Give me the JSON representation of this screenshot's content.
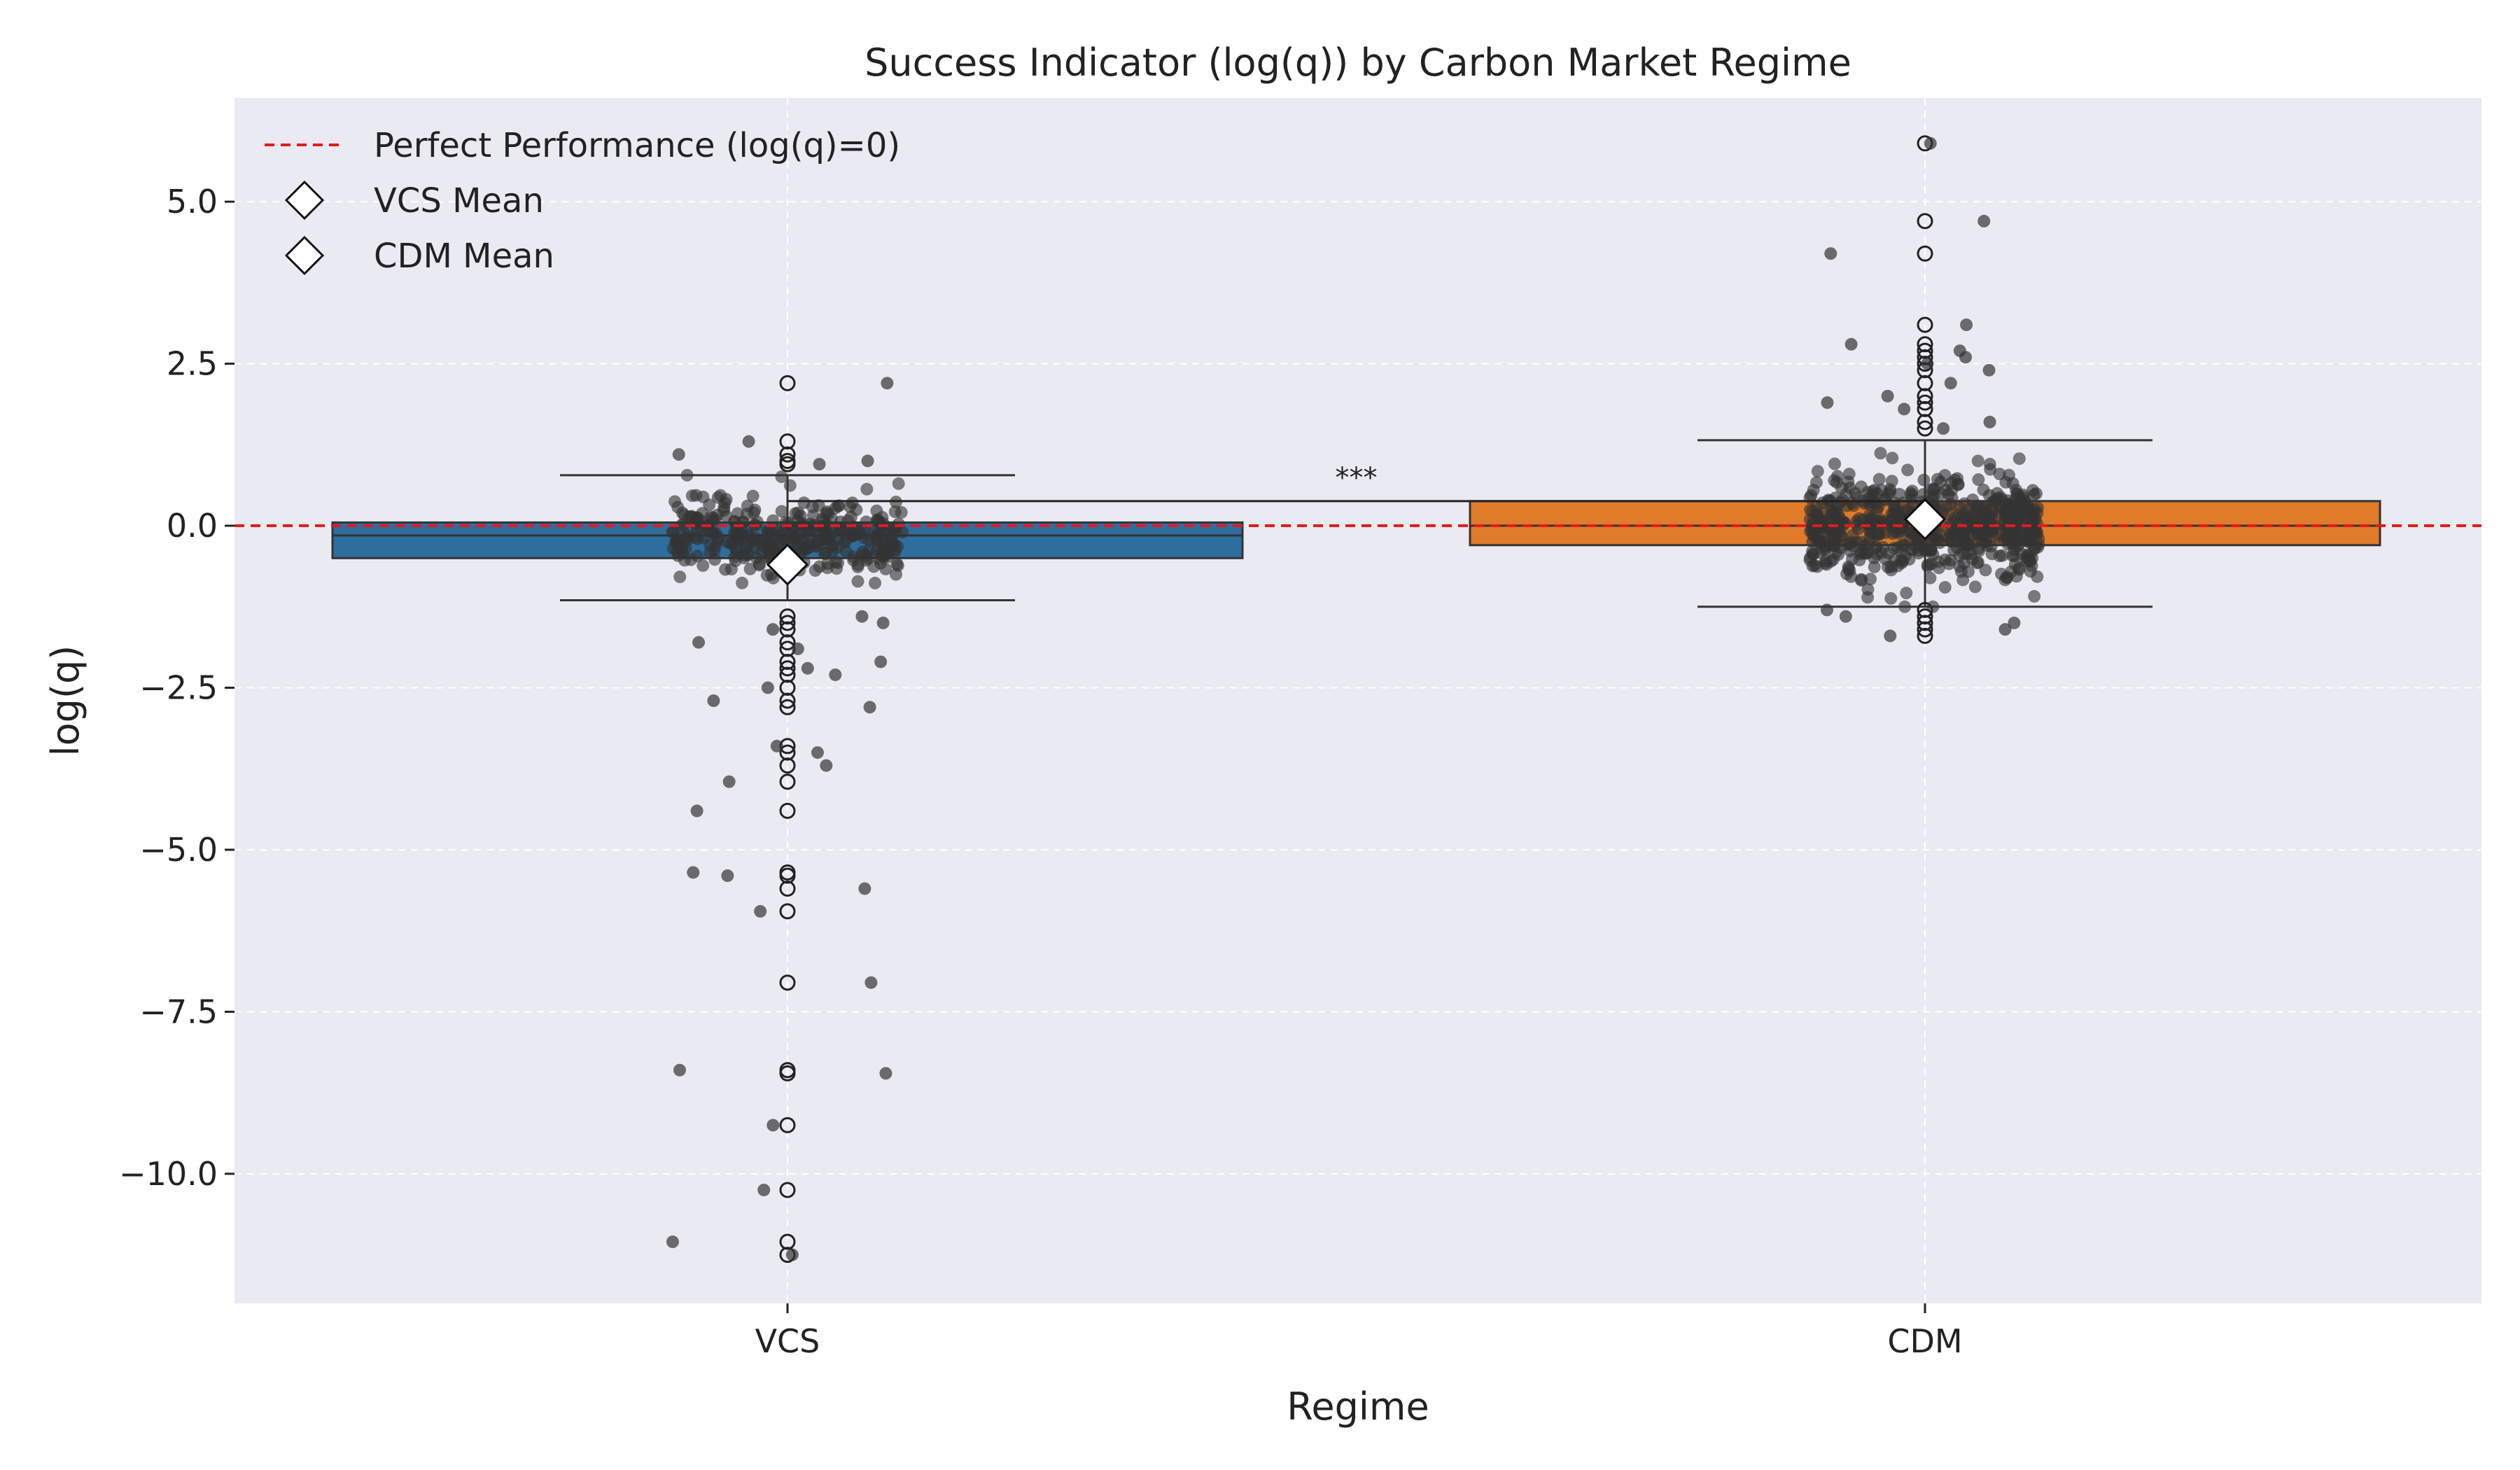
{
  "chart_data": {
    "type": "box",
    "title": "Success Indicator (log(q)) by Carbon Market Regime",
    "xlabel": "Regime",
    "ylabel": "log(q)",
    "ylim": [
      -12.0,
      6.6
    ],
    "yticks": [
      5.0,
      2.5,
      0.0,
      -2.5,
      -5.0,
      -7.5,
      -10.0
    ],
    "ytick_labels": [
      "5.0",
      "2.5",
      "0.0",
      "−2.5",
      "−5.0",
      "−7.5",
      "−10.0"
    ],
    "grid": true,
    "legend_position": "top-left",
    "legend": {
      "reference_line": "Perfect Performance (log(q)=0)",
      "vcs_mean": "VCS Mean",
      "cdm_mean": "CDM Mean"
    },
    "reference_line_value": 0.0,
    "significance_label": "***",
    "significance_bar_y": 0.38,
    "colors": {
      "background": "#eaeaf2",
      "grid": "#ffffff",
      "reference_line": "#e41a1c",
      "point": "#333333"
    },
    "categories": [
      {
        "name": "VCS",
        "color": "#2e6e9e",
        "q1": -0.5,
        "median": -0.15,
        "q3": 0.05,
        "whisker_low": -1.15,
        "whisker_high": 0.78,
        "mean": -0.6,
        "outliers": [
          2.2,
          1.3,
          1.1,
          1.0,
          0.95,
          -1.4,
          -1.5,
          -1.6,
          -1.8,
          -1.9,
          -2.1,
          -2.2,
          -2.3,
          -2.5,
          -2.7,
          -2.8,
          -3.4,
          -3.5,
          -3.7,
          -3.95,
          -4.4,
          -5.35,
          -5.4,
          -5.6,
          -5.95,
          -7.05,
          -8.4,
          -8.45,
          -9.25,
          -10.25,
          -11.05,
          -11.25
        ]
      },
      {
        "name": "CDM",
        "color": "#e07b29",
        "q1": -0.3,
        "median": 0.0,
        "q3": 0.38,
        "whisker_low": -1.25,
        "whisker_high": 1.32,
        "mean": 0.1,
        "outliers": [
          5.9,
          4.7,
          4.2,
          3.1,
          2.8,
          2.7,
          2.6,
          2.5,
          2.4,
          2.2,
          2.0,
          1.9,
          1.8,
          1.6,
          1.5,
          -1.3,
          -1.4,
          -1.5,
          -1.6,
          -1.7
        ]
      }
    ]
  }
}
